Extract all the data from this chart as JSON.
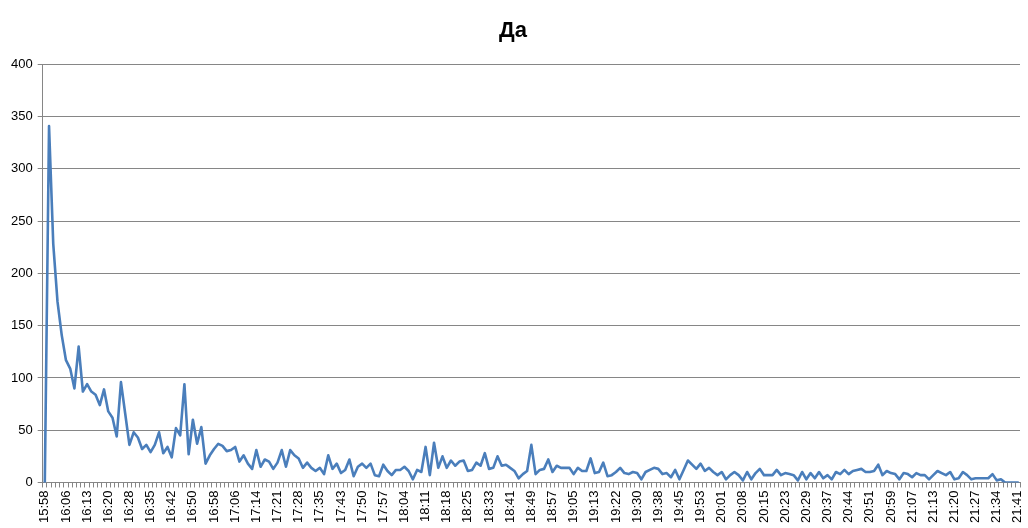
{
  "chart_data": {
    "type": "line",
    "title": "Да",
    "categories": [
      "15:58",
      null,
      null,
      null,
      null,
      "16:06",
      null,
      null,
      null,
      null,
      "16:13",
      null,
      null,
      null,
      null,
      "16:20",
      null,
      null,
      null,
      null,
      "16:28",
      null,
      null,
      null,
      null,
      "16:35",
      null,
      null,
      null,
      null,
      "16:42",
      null,
      null,
      null,
      null,
      "16:50",
      null,
      null,
      null,
      null,
      "16:58",
      null,
      null,
      null,
      null,
      "17:06",
      null,
      null,
      null,
      null,
      "17:14",
      null,
      null,
      null,
      null,
      "17:21",
      null,
      null,
      null,
      null,
      "17:28",
      null,
      null,
      null,
      null,
      "17:35",
      null,
      null,
      null,
      null,
      "17:43",
      null,
      null,
      null,
      null,
      "17:50",
      null,
      null,
      null,
      null,
      "17:57",
      null,
      null,
      null,
      null,
      "18:04",
      null,
      null,
      null,
      null,
      "18:11",
      null,
      null,
      null,
      null,
      "18:18",
      null,
      null,
      null,
      null,
      "18:25",
      null,
      null,
      null,
      null,
      "18:33",
      null,
      null,
      null,
      null,
      "18:41",
      null,
      null,
      null,
      null,
      "18:49",
      null,
      null,
      null,
      null,
      "18:57",
      null,
      null,
      null,
      null,
      "19:05",
      null,
      null,
      null,
      null,
      "19:13",
      null,
      null,
      null,
      null,
      "19:22",
      null,
      null,
      null,
      null,
      "19:30",
      null,
      null,
      null,
      null,
      "19:38",
      null,
      null,
      null,
      null,
      "19:45",
      null,
      null,
      null,
      null,
      "19:53",
      null,
      null,
      null,
      null,
      "20:01",
      null,
      null,
      null,
      null,
      "20:08",
      null,
      null,
      null,
      null,
      "20:15",
      null,
      null,
      null,
      null,
      "20:23",
      null,
      null,
      null,
      null,
      "20:29",
      null,
      null,
      null,
      null,
      "20:37",
      null,
      null,
      null,
      null,
      "20:44",
      null,
      null,
      null,
      null,
      "20:51",
      null,
      null,
      null,
      null,
      "20:59",
      null,
      null,
      null,
      null,
      "21:07",
      null,
      null,
      null,
      null,
      "21:13",
      null,
      null,
      null,
      null,
      "21:20",
      null,
      null,
      null,
      null,
      "21:27",
      null,
      null,
      null,
      null,
      "21:34",
      null,
      null,
      null,
      null,
      "21:41"
    ],
    "values": [
      0,
      341,
      228,
      173,
      141,
      117,
      109,
      90,
      130,
      87,
      94,
      87,
      84,
      74,
      89,
      68,
      62,
      44,
      96,
      66,
      36,
      48,
      43,
      32,
      36,
      29,
      36,
      48,
      28,
      34,
      24,
      52,
      45,
      94,
      27,
      60,
      37,
      53,
      18,
      26,
      32,
      37,
      35,
      30,
      31,
      34,
      20,
      26,
      18,
      13,
      31,
      15,
      22,
      20,
      13,
      19,
      31,
      15,
      31,
      26,
      23,
      14,
      19,
      14,
      11,
      14,
      8,
      26,
      13,
      18,
      9,
      12,
      22,
      6,
      15,
      18,
      14,
      18,
      7,
      6,
      17,
      11,
      7,
      12,
      12,
      15,
      11,
      3,
      12,
      10,
      34,
      7,
      38,
      14,
      25,
      14,
      21,
      16,
      20,
      21,
      11,
      12,
      19,
      16,
      28,
      13,
      14,
      25,
      16,
      17,
      14,
      11,
      4,
      8,
      11,
      36,
      8,
      12,
      13,
      22,
      10,
      16,
      14,
      14,
      14,
      8,
      14,
      11,
      11,
      23,
      9,
      10,
      19,
      6,
      7,
      10,
      14,
      9,
      8,
      10,
      9,
      3,
      10,
      12,
      14,
      13,
      8,
      9,
      5,
      12,
      3,
      12,
      21,
      17,
      13,
      18,
      11,
      14,
      10,
      7,
      10,
      3,
      7,
      10,
      7,
      2,
      10,
      3,
      9,
      13,
      7,
      7,
      7,
      12,
      7,
      9,
      8,
      7,
      2,
      10,
      3,
      9,
      4,
      10,
      4,
      7,
      3,
      10,
      8,
      12,
      8,
      11,
      12,
      13,
      10,
      10,
      11,
      17,
      7,
      11,
      9,
      8,
      3,
      9,
      8,
      5,
      9,
      7,
      7,
      3,
      7,
      11,
      9,
      7,
      10,
      3,
      4,
      10,
      7,
      3,
      4,
      4,
      4,
      4,
      8,
      2,
      3,
      0,
      0,
      0,
      0
    ],
    "color": "#4a7ebb",
    "ylim": [
      0,
      400
    ],
    "yticks": [
      0,
      50,
      100,
      150,
      200,
      250,
      300,
      350,
      400
    ],
    "grid": "y",
    "marker": "none",
    "line_style": "solid"
  }
}
